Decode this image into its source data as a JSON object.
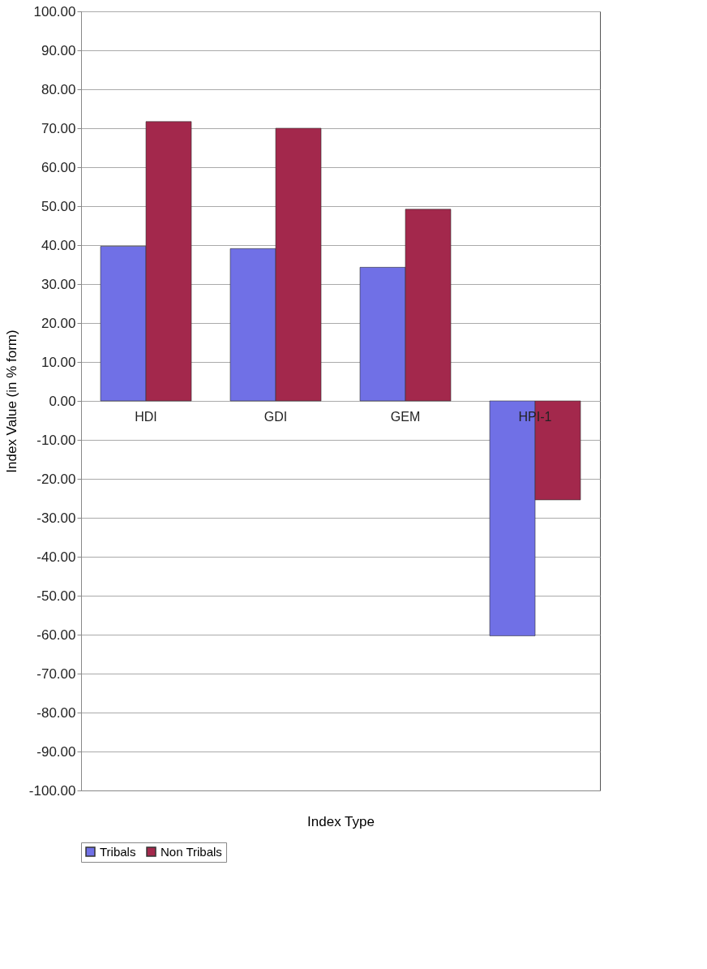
{
  "chart_data": {
    "type": "bar",
    "xlabel": "Index Type",
    "ylabel": "Index Value (in % form)",
    "categories": [
      "HDI",
      "GDI",
      "GEM",
      "HPI-1"
    ],
    "series": [
      {
        "name": "Tribals",
        "color": "#7070e6",
        "values": [
          39.7,
          39.1,
          34.3,
          -60.3
        ]
      },
      {
        "name": "Non Tribals",
        "color": "#a3284c",
        "values": [
          71.7,
          70.0,
          49.2,
          -25.4
        ]
      }
    ],
    "ylim": [
      -100,
      100
    ],
    "yticks": [
      {
        "value": -100,
        "label": "-100.00"
      },
      {
        "value": -90,
        "label": "-90.00"
      },
      {
        "value": -80,
        "label": "-80.00"
      },
      {
        "value": -70,
        "label": "-70.00"
      },
      {
        "value": -60,
        "label": "-60.00"
      },
      {
        "value": -50,
        "label": "-50.00"
      },
      {
        "value": -40,
        "label": "-40.00"
      },
      {
        "value": -30,
        "label": "-30.00"
      },
      {
        "value": -20,
        "label": "-20.00"
      },
      {
        "value": -10,
        "label": "-10.00"
      },
      {
        "value": 0,
        "label": "0.00"
      },
      {
        "value": 10,
        "label": "10.00"
      },
      {
        "value": 20,
        "label": "20.00"
      },
      {
        "value": 30,
        "label": "30.00"
      },
      {
        "value": 40,
        "label": "40.00"
      },
      {
        "value": 50,
        "label": "50.00"
      },
      {
        "value": 60,
        "label": "60.00"
      },
      {
        "value": 70,
        "label": "70.00"
      },
      {
        "value": 80,
        "label": "80.00"
      },
      {
        "value": 90,
        "label": "90.00"
      },
      {
        "value": 100,
        "label": "100.00"
      }
    ],
    "grid": "y",
    "legend": "bottom"
  }
}
